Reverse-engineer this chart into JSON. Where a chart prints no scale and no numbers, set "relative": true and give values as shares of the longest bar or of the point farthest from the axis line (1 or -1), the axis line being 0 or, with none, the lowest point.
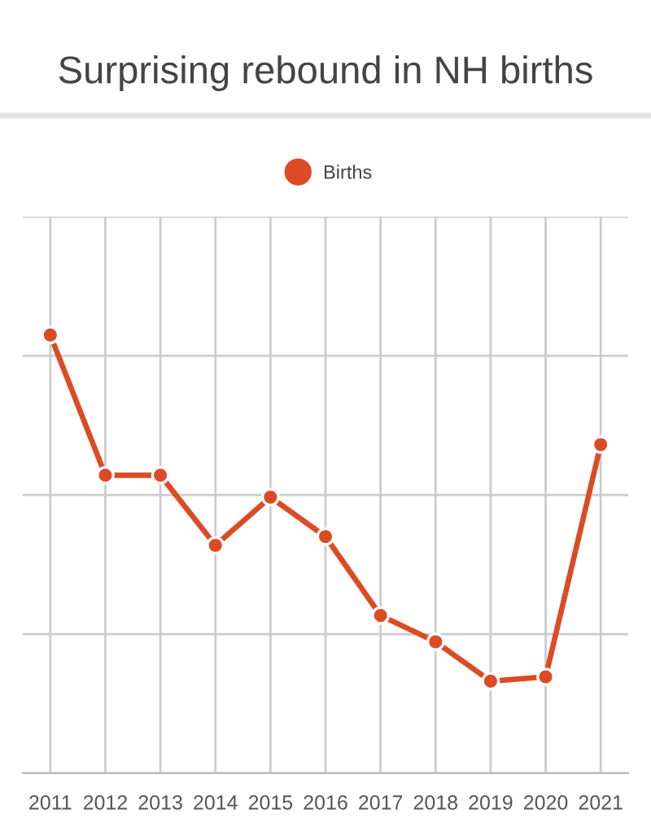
{
  "chart_data": {
    "type": "line",
    "title": "Surprising rebound in NH births",
    "categories": [
      "2011",
      "2012",
      "2013",
      "2014",
      "2015",
      "2016",
      "2017",
      "2018",
      "2019",
      "2020",
      "2021"
    ],
    "series": [
      {
        "name": "Births",
        "color": "#dd4b25",
        "values": [
          1,
          0.68,
          0.68,
          0.52,
          0.63,
          0.54,
          0.36,
          0.3,
          0.21,
          0.22,
          0.75
        ]
      }
    ],
    "relative": true,
    "tick_labels": "x",
    "grid": true,
    "legend": "top",
    "marker": "circle",
    "line_style": "solid"
  }
}
